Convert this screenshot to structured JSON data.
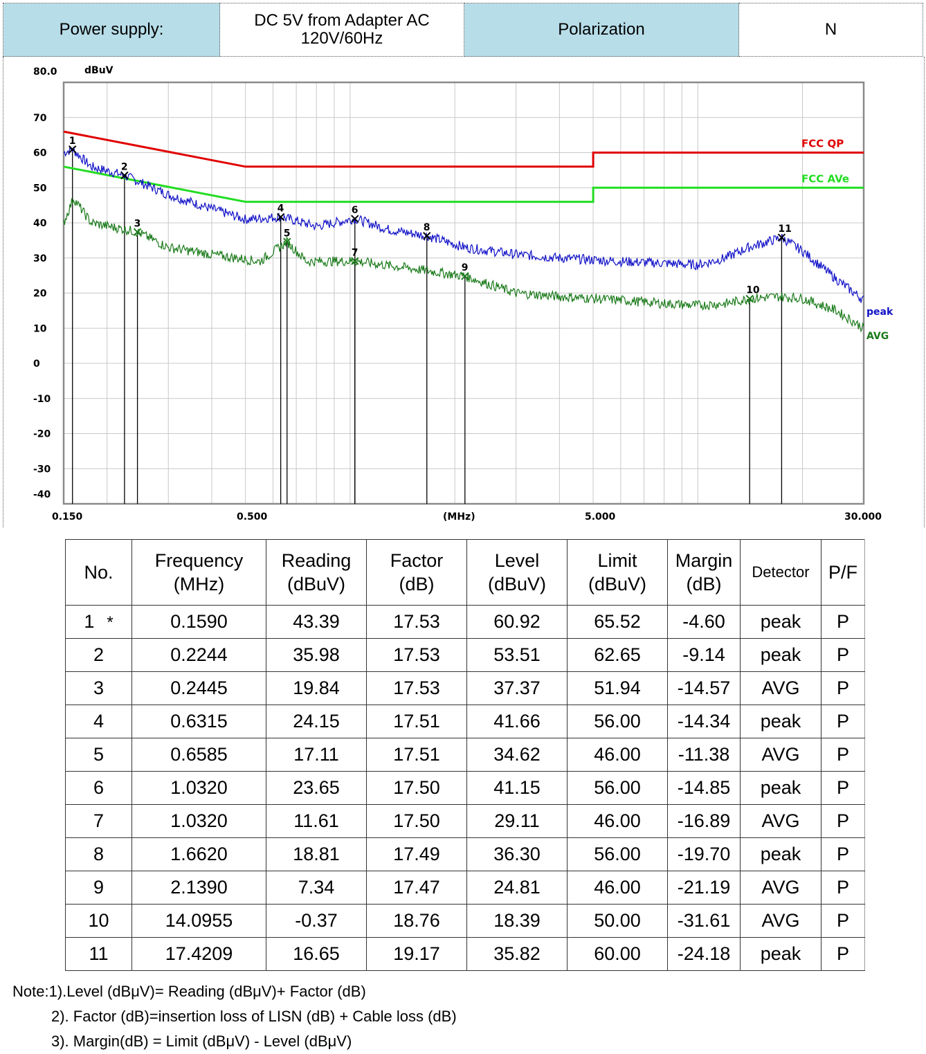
{
  "header": {
    "power_label": "Power supply:",
    "power_value": "DC 5V from Adapter AC 120V/60Hz",
    "polarization_label": "Polarization",
    "polarization_value": "N"
  },
  "chart_data": {
    "type": "line",
    "y_unit": "dBuV",
    "x_unit": "(MHz)",
    "x_scale": "log",
    "xlim": [
      0.15,
      30
    ],
    "ylim": [
      -40,
      80
    ],
    "y_ticks": [
      "80.0",
      "70",
      "60",
      "50",
      "40",
      "30",
      "20",
      "10",
      "0",
      "-10",
      "-20",
      "-30",
      "-40"
    ],
    "x_ticks": [
      "0.150",
      "0.500",
      "5.000",
      "30.000"
    ],
    "grid": true,
    "colors": {
      "qp_limit": "#e00000",
      "avg_limit": "#22dd22",
      "peak": "#1010c8",
      "avg": "#1a7a1a"
    },
    "limits": [
      {
        "name": "FCC QP",
        "points": [
          [
            0.15,
            66
          ],
          [
            0.5,
            56
          ],
          [
            5,
            56
          ],
          [
            5,
            60
          ],
          [
            30,
            60
          ]
        ]
      },
      {
        "name": "FCC AVe",
        "points": [
          [
            0.15,
            56
          ],
          [
            0.5,
            46
          ],
          [
            5,
            46
          ],
          [
            5,
            50
          ],
          [
            30,
            50
          ]
        ]
      }
    ],
    "series": [
      {
        "name": "peak",
        "points": [
          [
            0.15,
            60
          ],
          [
            0.159,
            60.9
          ],
          [
            0.18,
            56
          ],
          [
            0.2244,
            53.5
          ],
          [
            0.3,
            48
          ],
          [
            0.4,
            44
          ],
          [
            0.5,
            41
          ],
          [
            0.6315,
            41.7
          ],
          [
            0.8,
            39
          ],
          [
            1.032,
            41.2
          ],
          [
            1.3,
            38
          ],
          [
            1.662,
            36.3
          ],
          [
            2.139,
            33
          ],
          [
            3,
            31
          ],
          [
            4,
            30
          ],
          [
            6,
            29
          ],
          [
            8,
            28.5
          ],
          [
            10,
            28
          ],
          [
            12,
            30
          ],
          [
            14,
            33
          ],
          [
            17.42,
            35.8
          ],
          [
            20,
            32
          ],
          [
            25,
            24
          ],
          [
            30,
            18
          ]
        ]
      },
      {
        "name": "AVG",
        "points": [
          [
            0.15,
            40
          ],
          [
            0.16,
            47
          ],
          [
            0.18,
            40
          ],
          [
            0.2445,
            37.4
          ],
          [
            0.3,
            33
          ],
          [
            0.4,
            31
          ],
          [
            0.55,
            29
          ],
          [
            0.6585,
            34.6
          ],
          [
            0.75,
            29
          ],
          [
            1.032,
            29.1
          ],
          [
            1.5,
            27
          ],
          [
            2.139,
            24.8
          ],
          [
            3,
            20
          ],
          [
            4,
            19
          ],
          [
            6,
            18
          ],
          [
            8,
            17
          ],
          [
            10,
            16.5
          ],
          [
            12,
            17
          ],
          [
            14.1,
            18.4
          ],
          [
            17,
            19
          ],
          [
            20,
            18.5
          ],
          [
            25,
            15
          ],
          [
            30,
            10
          ]
        ]
      }
    ],
    "markers": [
      {
        "no": "1",
        "f": 0.159,
        "level": 60.92
      },
      {
        "no": "2",
        "f": 0.2244,
        "level": 53.51
      },
      {
        "no": "3",
        "f": 0.2445,
        "level": 37.37
      },
      {
        "no": "4",
        "f": 0.6315,
        "level": 41.66
      },
      {
        "no": "5",
        "f": 0.6585,
        "level": 34.62
      },
      {
        "no": "6",
        "f": 1.032,
        "level": 41.15
      },
      {
        "no": "7",
        "f": 1.032,
        "level": 29.11
      },
      {
        "no": "8",
        "f": 1.662,
        "level": 36.3
      },
      {
        "no": "9",
        "f": 2.139,
        "level": 24.81
      },
      {
        "no": "10",
        "f": 14.0955,
        "level": 18.39
      },
      {
        "no": "11",
        "f": 17.4209,
        "level": 35.82
      }
    ]
  },
  "table": {
    "headers": [
      [
        "No.",
        ""
      ],
      [
        "Frequency",
        "(MHz)"
      ],
      [
        "Reading",
        "(dBuV)"
      ],
      [
        "Factor",
        "(dB)"
      ],
      [
        "Level",
        "(dBuV)"
      ],
      [
        "Limit",
        "(dBuV)"
      ],
      [
        "Margin",
        "(dB)"
      ],
      [
        "Detector",
        ""
      ],
      [
        "P/F",
        ""
      ]
    ],
    "rows": [
      [
        "1",
        "0.1590",
        "43.39",
        "17.53",
        "60.92",
        "65.52",
        "-4.60",
        "peak",
        "P"
      ],
      [
        "2",
        "0.2244",
        "35.98",
        "17.53",
        "53.51",
        "62.65",
        "-9.14",
        "peak",
        "P"
      ],
      [
        "3",
        "0.2445",
        "19.84",
        "17.53",
        "37.37",
        "51.94",
        "-14.57",
        "AVG",
        "P"
      ],
      [
        "4",
        "0.6315",
        "24.15",
        "17.51",
        "41.66",
        "56.00",
        "-14.34",
        "peak",
        "P"
      ],
      [
        "5",
        "0.6585",
        "17.11",
        "17.51",
        "34.62",
        "46.00",
        "-11.38",
        "AVG",
        "P"
      ],
      [
        "6",
        "1.0320",
        "23.65",
        "17.50",
        "41.15",
        "56.00",
        "-14.85",
        "peak",
        "P"
      ],
      [
        "7",
        "1.0320",
        "11.61",
        "17.50",
        "29.11",
        "46.00",
        "-16.89",
        "AVG",
        "P"
      ],
      [
        "8",
        "1.6620",
        "18.81",
        "17.49",
        "36.30",
        "56.00",
        "-19.70",
        "peak",
        "P"
      ],
      [
        "9",
        "2.1390",
        "7.34",
        "17.47",
        "24.81",
        "46.00",
        "-21.19",
        "AVG",
        "P"
      ],
      [
        "10",
        "14.0955",
        "-0.37",
        "18.76",
        "18.39",
        "50.00",
        "-31.61",
        "AVG",
        "P"
      ],
      [
        "11",
        "17.4209",
        "16.65",
        "19.17",
        "35.82",
        "60.00",
        "-24.18",
        "peak",
        "P"
      ]
    ],
    "star_mark": "*"
  },
  "notes": [
    "Note:1).Level (dBμV)= Reading (dBμV)+ Factor (dB)",
    "2). Factor (dB)=insertion loss of LISN (dB) + Cable loss (dB)",
    "3). Margin(dB) = Limit (dBμV) - Level (dBμV)"
  ]
}
